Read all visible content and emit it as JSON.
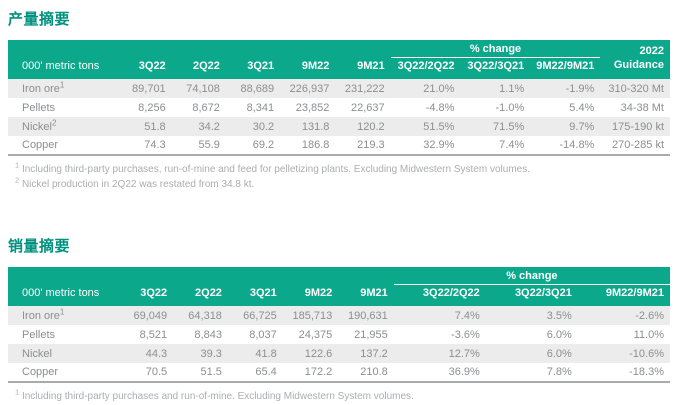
{
  "colors": {
    "header_teal": "#0BA88C",
    "title_teal": "#00917F",
    "row_stripe": "#ECECEC",
    "body_text": "#8C8E90",
    "footnote_text": "#ABADAF",
    "table_bottom_border": "#A8AAAC"
  },
  "production": {
    "title": "产量摘要",
    "unit_header": "000' metric tons",
    "pct_change_label": "% change",
    "period_columns": [
      "3Q22",
      "2Q22",
      "3Q21",
      "9M22",
      "9M21"
    ],
    "change_columns": [
      "3Q22/2Q22",
      "3Q22/3Q21",
      "9M22/9M21"
    ],
    "guidance_header": {
      "line1": "2022",
      "line2": "Guidance"
    },
    "rows": [
      {
        "label": "Iron ore",
        "sup": "1",
        "cells": [
          "89,701",
          "74,108",
          "88,689",
          "226,937",
          "231,222",
          "21.0%",
          "1.1%",
          "-1.9%",
          "310-320 Mt"
        ]
      },
      {
        "label": "Pellets",
        "sup": "",
        "cells": [
          "8,256",
          "8,672",
          "8,341",
          "23,852",
          "22,637",
          "-4.8%",
          "-1.0%",
          "5.4%",
          "34-38 Mt"
        ]
      },
      {
        "label": "Nickel",
        "sup": "2",
        "cells": [
          "51.8",
          "34.2",
          "30.2",
          "131.8",
          "120.2",
          "51.5%",
          "71.5%",
          "9.7%",
          "175-190 kt"
        ]
      },
      {
        "label": "Copper",
        "sup": "",
        "cells": [
          "74.3",
          "55.9",
          "69.2",
          "186.8",
          "219.3",
          "32.9%",
          "7.4%",
          "-14.8%",
          "270-285 kt"
        ]
      }
    ],
    "footnotes": [
      {
        "sup": "1",
        "text": "Including third-party purchases, run-of-mine and feed for pelletizing plants. Excluding Midwestern System volumes."
      },
      {
        "sup": "2",
        "text": "Nickel production in 2Q22 was restated from 34.8 kt."
      }
    ]
  },
  "sales": {
    "title": "销量摘要",
    "unit_header": "000' metric tons",
    "pct_change_label": "% change",
    "period_columns": [
      "3Q22",
      "2Q22",
      "3Q21",
      "9M22",
      "9M21"
    ],
    "change_columns": [
      "3Q22/2Q22",
      "3Q22/3Q21",
      "9M22/9M21"
    ],
    "rows": [
      {
        "label": "Iron ore",
        "sup": "1",
        "cells": [
          "69,049",
          "64,318",
          "66,725",
          "185,713",
          "190,631",
          "7.4%",
          "3.5%",
          "-2.6%"
        ]
      },
      {
        "label": "Pellets",
        "sup": "",
        "cells": [
          "8,521",
          "8,843",
          "8,037",
          "24,375",
          "21,955",
          "-3.6%",
          "6.0%",
          "11.0%"
        ]
      },
      {
        "label": "Nickel",
        "sup": "",
        "cells": [
          "44.3",
          "39.3",
          "41.8",
          "122.6",
          "137.2",
          "12.7%",
          "6.0%",
          "-10.6%"
        ]
      },
      {
        "label": "Copper",
        "sup": "",
        "cells": [
          "70.5",
          "51.5",
          "65.4",
          "172.2",
          "210.8",
          "36.9%",
          "7.8%",
          "-18.3%"
        ]
      }
    ],
    "footnotes": [
      {
        "sup": "1",
        "text": "Including third-party purchases and run-of-mine. Excluding Midwestern System volumes."
      }
    ]
  }
}
